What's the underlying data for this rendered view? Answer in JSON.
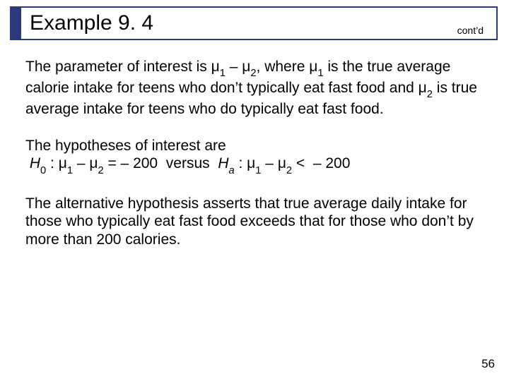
{
  "colors": {
    "border": "#2a3a7a",
    "marker": "#2a3a7a",
    "background": "#ffffff",
    "text": "#000000"
  },
  "typography": {
    "title_fontsize": 30,
    "body_fontsize": 21,
    "contd_fontsize": 14,
    "pagenum_fontsize": 17,
    "font_family": "Arial"
  },
  "title": "Example 9. 4",
  "contd": "cont’d",
  "mu": "μ",
  "sub1": "1",
  "sub2": "2",
  "sub0": "0",
  "suba": "a",
  "H": "H",
  "para1_a": "The parameter of interest is ",
  "para1_b": " – ",
  "para1_c": ", where ",
  "para1_d": " is the true average calorie intake for teens who don’t typically eat fast food and ",
  "para1_e": " is true average intake for teens who do typically eat fast food.",
  "para2_a": "The hypotheses of interest are",
  "para2_b": " : ",
  "para2_c": " – ",
  "para2_d": " = – 200  versus  ",
  "para2_e": " : ",
  "para2_f": " – ",
  "para2_g": " <  – 200",
  "para3": "The alternative hypothesis asserts that true average daily intake for those who typically eat fast food exceeds that for those who don’t by more than 200 calories.",
  "page_number": "56"
}
